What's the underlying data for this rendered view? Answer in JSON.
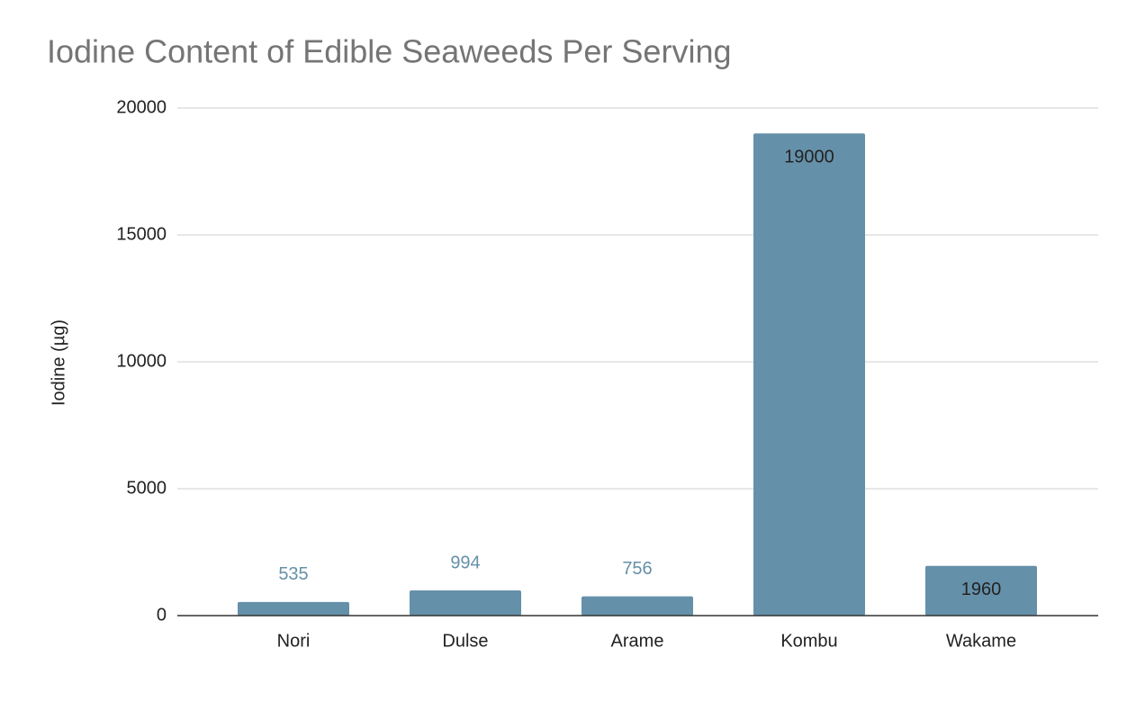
{
  "chart_data": {
    "type": "bar",
    "title": "Iodine Content of Edible Seaweeds Per Serving",
    "y_label": "Iodine (µg)",
    "categories": [
      "Nori",
      "Dulse",
      "Arame",
      "Kombu",
      "Wakame"
    ],
    "values": [
      535,
      994,
      756,
      19000,
      1960
    ],
    "color": "#6590a9",
    "ylim": [
      0,
      20000
    ],
    "yticks": [
      0,
      5000,
      10000,
      15000,
      20000
    ],
    "grid": true
  }
}
